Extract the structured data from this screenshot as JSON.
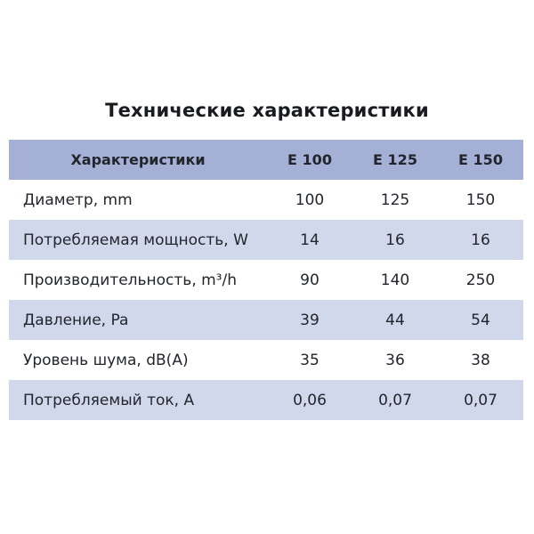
{
  "title": "Технические характеристики",
  "colors": {
    "header_bg": "#a5b0d6",
    "alt_row_bg": "#d2d8ec",
    "text": "#23252d",
    "page_bg": "#ffffff"
  },
  "table": {
    "header": {
      "label": "Характеристики",
      "columns": [
        "E 100",
        "E 125",
        "E 150"
      ]
    },
    "rows": [
      {
        "label": "Диаметр, mm",
        "values": [
          "100",
          "125",
          "150"
        ]
      },
      {
        "label": "Потребляемая мощность, W",
        "values": [
          "14",
          "16",
          "16"
        ]
      },
      {
        "label": "Производительность, m³/h",
        "values": [
          "90",
          "140",
          "250"
        ]
      },
      {
        "label": "Давление, Pa",
        "values": [
          "39",
          "44",
          "54"
        ]
      },
      {
        "label": "Уровень шума, dB(A)",
        "values": [
          "35",
          "36",
          "38"
        ]
      },
      {
        "label": "Потребляемый ток, А",
        "values": [
          "0,06",
          "0,07",
          "0,07"
        ]
      }
    ]
  }
}
